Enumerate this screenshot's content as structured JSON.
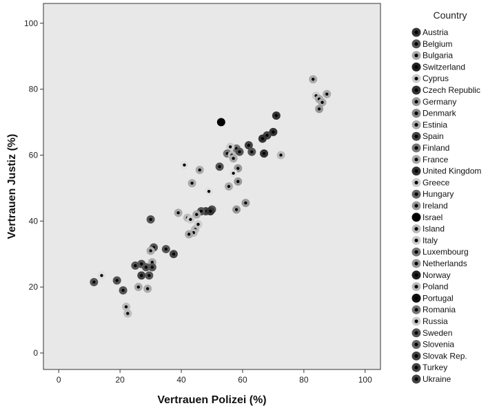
{
  "chart_data": {
    "type": "scatter",
    "title": "",
    "xlabel": "Vertrauen Polizei (%)",
    "ylabel": "Vertrauen Justiz (%)",
    "xlim": [
      -5,
      105
    ],
    "ylim": [
      -5,
      106
    ],
    "x_ticks": [
      "0",
      "20",
      "40",
      "60",
      "80",
      "100"
    ],
    "y_ticks": [
      "0",
      "20",
      "40",
      "60",
      "80",
      "100"
    ],
    "grid": false,
    "plot_background": "#e8e8e8",
    "legend": {
      "title": "Country",
      "position": "right",
      "entries": [
        {
          "name": "Austria",
          "color": "#333333"
        },
        {
          "name": "Belgium",
          "color": "#555555"
        },
        {
          "name": "Bulgaria",
          "color": "#aaaaaa"
        },
        {
          "name": "Switzerland",
          "color": "#222222"
        },
        {
          "name": "Cyprus",
          "color": "#cccccc"
        },
        {
          "name": "Czech Republic",
          "color": "#333333"
        },
        {
          "name": "Germany",
          "color": "#999999"
        },
        {
          "name": "Denmark",
          "color": "#888888"
        },
        {
          "name": "Estinia",
          "color": "#aaaaaa"
        },
        {
          "name": "Spain",
          "color": "#444444"
        },
        {
          "name": "Finland",
          "color": "#777777"
        },
        {
          "name": "France",
          "color": "#aaaaaa"
        },
        {
          "name": "United Kingdom",
          "color": "#333333"
        },
        {
          "name": "Greece",
          "color": "#cccccc"
        },
        {
          "name": "Hungary",
          "color": "#666666"
        },
        {
          "name": "Ireland",
          "color": "#999999"
        },
        {
          "name": "Israel",
          "color": "#000000"
        },
        {
          "name": "Island",
          "color": "#bbbbbb"
        },
        {
          "name": "Italy",
          "color": "#cccccc"
        },
        {
          "name": "Luxembourg",
          "color": "#777777"
        },
        {
          "name": "Netherlands",
          "color": "#999999"
        },
        {
          "name": "Norway",
          "color": "#222222"
        },
        {
          "name": "Poland",
          "color": "#bbbbbb"
        },
        {
          "name": "Portugal",
          "color": "#111111"
        },
        {
          "name": "Romania",
          "color": "#777777"
        },
        {
          "name": "Russia",
          "color": "#cccccc"
        },
        {
          "name": "Sweden",
          "color": "#555555"
        },
        {
          "name": "Slovenia",
          "color": "#666666"
        },
        {
          "name": "Slovak Rep.",
          "color": "#444444"
        },
        {
          "name": "Turkey",
          "color": "#444444"
        },
        {
          "name": "Ukraine",
          "color": "#444444"
        }
      ]
    },
    "points": [
      {
        "x": 83,
        "y": 83,
        "color": "#aaaaaa"
      },
      {
        "x": 84,
        "y": 78,
        "color": "#cccccc"
      },
      {
        "x": 85,
        "y": 77,
        "color": "#aaaaaa"
      },
      {
        "x": 86,
        "y": 76,
        "color": "#aaaaaa"
      },
      {
        "x": 87.5,
        "y": 78.5,
        "color": "#aaaaaa"
      },
      {
        "x": 85,
        "y": 74,
        "color": "#999999"
      },
      {
        "x": 53,
        "y": 70,
        "color": "#000000"
      },
      {
        "x": 71,
        "y": 72,
        "color": "#333333"
      },
      {
        "x": 70,
        "y": 67,
        "color": "#333333"
      },
      {
        "x": 68,
        "y": 66,
        "color": "#444444"
      },
      {
        "x": 66.5,
        "y": 65,
        "color": "#333333"
      },
      {
        "x": 62,
        "y": 63,
        "color": "#444444"
      },
      {
        "x": 63,
        "y": 61,
        "color": "#555555"
      },
      {
        "x": 58,
        "y": 62,
        "color": "#777777"
      },
      {
        "x": 56,
        "y": 62.5,
        "color": "#cccccc"
      },
      {
        "x": 59,
        "y": 61,
        "color": "#555555"
      },
      {
        "x": 55,
        "y": 60.5,
        "color": "#777777"
      },
      {
        "x": 56.5,
        "y": 60,
        "color": "#bbbbbb"
      },
      {
        "x": 57,
        "y": 59,
        "color": "#aaaaaa"
      },
      {
        "x": 67,
        "y": 60.5,
        "color": "#333333"
      },
      {
        "x": 72.5,
        "y": 60,
        "color": "#bbbbbb"
      },
      {
        "x": 41,
        "y": 57,
        "color": "#e0e0e0"
      },
      {
        "x": 52.5,
        "y": 56.5,
        "color": "#555555"
      },
      {
        "x": 58.5,
        "y": 56,
        "color": "#999999"
      },
      {
        "x": 46,
        "y": 55.5,
        "color": "#aaaaaa"
      },
      {
        "x": 57,
        "y": 54.5,
        "color": "#e0e0e0"
      },
      {
        "x": 43.5,
        "y": 51.5,
        "color": "#aaaaaa"
      },
      {
        "x": 58.5,
        "y": 52,
        "color": "#999999"
      },
      {
        "x": 55.5,
        "y": 50.5,
        "color": "#aaaaaa"
      },
      {
        "x": 49,
        "y": 49,
        "color": "#e0e0e0"
      },
      {
        "x": 61,
        "y": 45.5,
        "color": "#999999"
      },
      {
        "x": 58,
        "y": 43.5,
        "color": "#999999"
      },
      {
        "x": 50,
        "y": 43.5,
        "color": "#555555"
      },
      {
        "x": 48,
        "y": 43,
        "color": "#444444"
      },
      {
        "x": 49.5,
        "y": 43,
        "color": "#333333"
      },
      {
        "x": 46.5,
        "y": 43,
        "color": "#555555"
      },
      {
        "x": 39,
        "y": 42.5,
        "color": "#aaaaaa"
      },
      {
        "x": 45,
        "y": 42,
        "color": "#aaaaaa"
      },
      {
        "x": 42,
        "y": 41,
        "color": "#bbbbbb"
      },
      {
        "x": 43,
        "y": 40.5,
        "color": "#cccccc"
      },
      {
        "x": 30,
        "y": 40.5,
        "color": "#555555"
      },
      {
        "x": 45.5,
        "y": 39,
        "color": "#cccccc"
      },
      {
        "x": 44.5,
        "y": 37.5,
        "color": "#bbbbbb"
      },
      {
        "x": 44,
        "y": 36.5,
        "color": "#bbbbbb"
      },
      {
        "x": 42.5,
        "y": 36,
        "color": "#aaaaaa"
      },
      {
        "x": 31,
        "y": 32,
        "color": "#555555"
      },
      {
        "x": 35,
        "y": 31.5,
        "color": "#555555"
      },
      {
        "x": 30,
        "y": 31,
        "color": "#aaaaaa"
      },
      {
        "x": 37.5,
        "y": 30,
        "color": "#444444"
      },
      {
        "x": 30.5,
        "y": 27.5,
        "color": "#aaaaaa"
      },
      {
        "x": 27,
        "y": 27,
        "color": "#555555"
      },
      {
        "x": 25,
        "y": 26.5,
        "color": "#555555"
      },
      {
        "x": 28.5,
        "y": 26,
        "color": "#555555"
      },
      {
        "x": 30.5,
        "y": 26,
        "color": "#555555"
      },
      {
        "x": 27,
        "y": 23.5,
        "color": "#444444"
      },
      {
        "x": 29.5,
        "y": 23.5,
        "color": "#555555"
      },
      {
        "x": 14,
        "y": 23.5,
        "color": "#e0e0e0"
      },
      {
        "x": 11.5,
        "y": 21.5,
        "color": "#555555"
      },
      {
        "x": 19,
        "y": 22,
        "color": "#555555"
      },
      {
        "x": 21,
        "y": 19,
        "color": "#555555"
      },
      {
        "x": 26,
        "y": 20,
        "color": "#aaaaaa"
      },
      {
        "x": 29,
        "y": 19.5,
        "color": "#aaaaaa"
      },
      {
        "x": 22,
        "y": 14,
        "color": "#bbbbbb"
      },
      {
        "x": 22.5,
        "y": 12,
        "color": "#bbbbbb"
      }
    ]
  }
}
